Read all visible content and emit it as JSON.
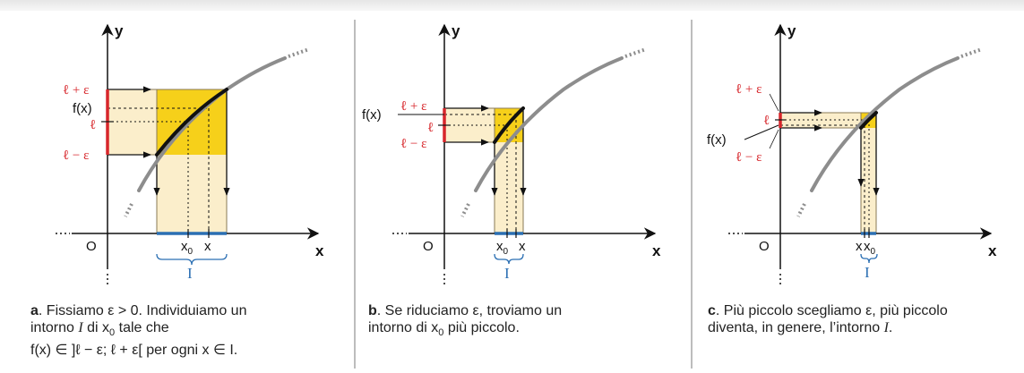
{
  "colors": {
    "red": "#d7262b",
    "blue": "#2b6fb3",
    "yellow": "#f6d01a",
    "cream": "#fbeecb",
    "curve_gray": "#8d8d8d"
  },
  "axes": {
    "x_label": "x",
    "y_label": "y",
    "origin_label": "O"
  },
  "labels": {
    "l_plus_eps": "ℓ + ε",
    "l": "ℓ",
    "l_minus_eps": "ℓ − ε",
    "fx": "f(x)",
    "x0_base": "x",
    "x0_sub": "0",
    "x": "x",
    "interval": "I"
  },
  "panels": [
    {
      "id": "a",
      "caption_letter": "a",
      "caption_line1": ". Fissiamo ε > 0. Individuiamo un",
      "caption_line2_pre": "intorno ",
      "caption_line2_I": "I",
      "caption_line2_mid": " di x",
      "caption_line2_sub": "0",
      "caption_line2_post": " tale che",
      "caption_line3": "f(x) ∈ ]ℓ − ε; ℓ + ε[ per ogni x ∈ I."
    },
    {
      "id": "b",
      "caption_letter": "b",
      "caption_line1": ". Se riduciamo ε, troviamo un",
      "caption_line2_pre": "intorno di x",
      "caption_line2_sub": "0",
      "caption_line2_post": " più piccolo."
    },
    {
      "id": "c",
      "caption_letter": "c",
      "caption_line1": ". Più piccolo scegliamo ε, più piccolo",
      "caption_line2_pre": "diventa, in genere, l’intorno ",
      "caption_line2_I": "I",
      "caption_line2_post": "."
    }
  ]
}
